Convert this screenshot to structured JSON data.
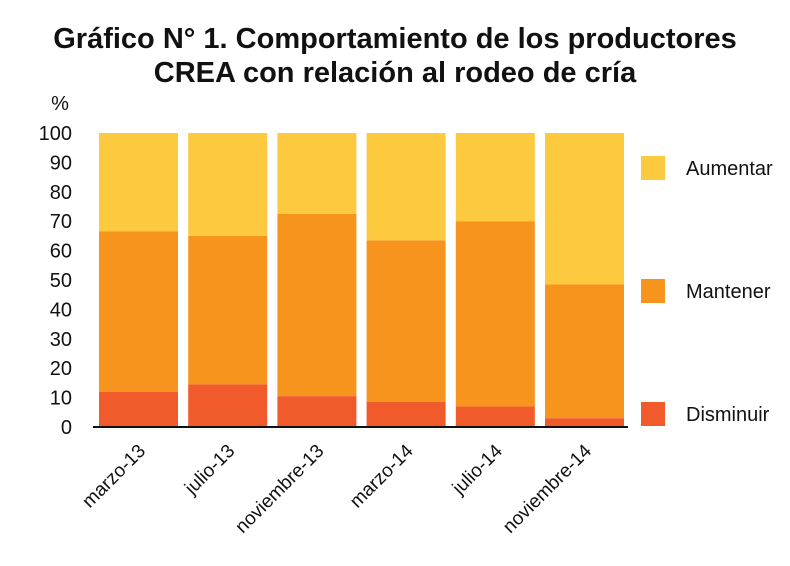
{
  "chart_data": {
    "type": "bar",
    "stacked": true,
    "title": [
      "Gráfico N° 1. Comportamiento de los productores",
      "CREA con relación al rodeo de cría"
    ],
    "ylabel": "%",
    "ylim": [
      0,
      100
    ],
    "yticks": [
      0,
      10,
      20,
      30,
      40,
      50,
      60,
      70,
      80,
      90,
      100
    ],
    "categories": [
      "marzo-13",
      "julio-13",
      "noviembre-13",
      "marzo-14",
      "julio-14",
      "noviembre-14"
    ],
    "series": [
      {
        "name": "Disminuir",
        "color": "#F15A2B",
        "values": [
          12,
          14.5,
          10.5,
          8.5,
          7,
          3
        ]
      },
      {
        "name": "Mantener",
        "color": "#F7941D",
        "values": [
          54.5,
          50.5,
          62,
          55,
          63,
          45.5
        ]
      },
      {
        "name": "Aumentar",
        "color": "#FDC93F",
        "values": [
          33.5,
          35,
          27.5,
          36.5,
          30,
          51.5
        ]
      }
    ],
    "legend_order": [
      "Aumentar",
      "Mantener",
      "Disminuir"
    ],
    "legend_position": "right",
    "grid": false
  }
}
